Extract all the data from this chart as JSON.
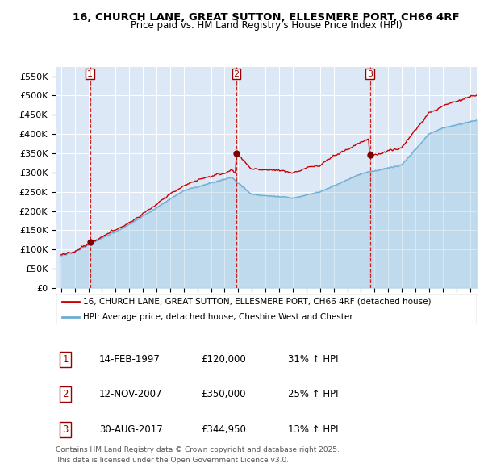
{
  "title": "16, CHURCH LANE, GREAT SUTTON, ELLESMERE PORT, CH66 4RF",
  "subtitle": "Price paid vs. HM Land Registry's House Price Index (HPI)",
  "legend_line1": "16, CHURCH LANE, GREAT SUTTON, ELLESMERE PORT, CH66 4RF (detached house)",
  "legend_line2": "HPI: Average price, detached house, Cheshire West and Chester",
  "table_entries": [
    {
      "num": "1",
      "date": "14-FEB-1997",
      "price": "£120,000",
      "change": "31% ↑ HPI"
    },
    {
      "num": "2",
      "date": "12-NOV-2007",
      "price": "£350,000",
      "change": "25% ↑ HPI"
    },
    {
      "num": "3",
      "date": "30-AUG-2017",
      "price": "£344,950",
      "change": "13% ↑ HPI"
    }
  ],
  "footnote1": "Contains HM Land Registry data © Crown copyright and database right 2025.",
  "footnote2": "This data is licensed under the Open Government Licence v3.0.",
  "sale_dates": [
    1997.12,
    2007.87,
    2017.66
  ],
  "sale_prices": [
    120000,
    350000,
    344950
  ],
  "hpi_color": "#6baed6",
  "price_color": "#cc0000",
  "vline_color": "#cc0000",
  "bg_color": "#dce8f5",
  "ylim": [
    0,
    575000
  ],
  "xlim_start": 1994.6,
  "xlim_end": 2025.5
}
